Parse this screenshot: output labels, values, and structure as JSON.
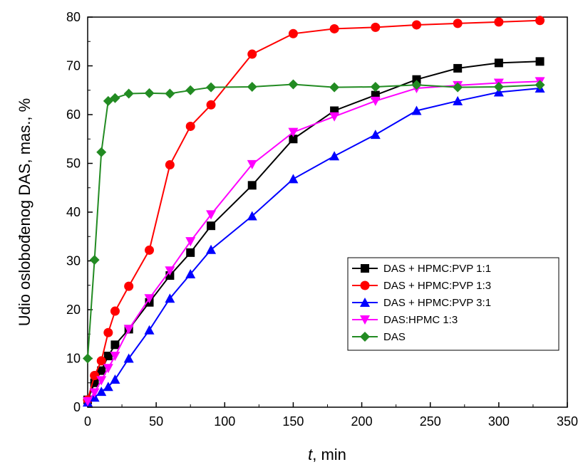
{
  "chart_data": {
    "type": "line",
    "xlabel_italic": "t",
    "xlabel_rest": ", min",
    "ylabel": "Udio oslobođenog DAS, mas., %",
    "xlim": [
      0,
      350
    ],
    "ylim": [
      0,
      80
    ],
    "xticks": [
      0,
      50,
      100,
      150,
      200,
      250,
      300,
      350
    ],
    "yticks": [
      0,
      10,
      20,
      30,
      40,
      50,
      60,
      70,
      80
    ],
    "legend_position": "lower-right",
    "grid": false,
    "series": [
      {
        "name": "DAS + HPMC:PVP 1:1",
        "color": "#000000",
        "marker": "square",
        "x": [
          0,
          5,
          10,
          15,
          20,
          30,
          45,
          60,
          75,
          90,
          120,
          150,
          180,
          210,
          240,
          270,
          300,
          330
        ],
        "y": [
          1.5,
          5.0,
          7.5,
          10.5,
          12.8,
          16.0,
          21.5,
          27.0,
          31.7,
          37.2,
          45.5,
          55.0,
          60.8,
          64.0,
          67.2,
          69.5,
          70.6,
          70.9
        ]
      },
      {
        "name": "DAS + HPMC:PVP 1:3",
        "color": "#ff0000",
        "marker": "circle",
        "x": [
          0,
          5,
          10,
          15,
          20,
          30,
          45,
          60,
          75,
          90,
          120,
          150,
          180,
          210,
          240,
          270,
          300,
          330
        ],
        "y": [
          1.5,
          6.5,
          9.5,
          15.3,
          19.7,
          24.8,
          32.2,
          49.7,
          57.6,
          62.0,
          72.4,
          76.6,
          77.6,
          77.9,
          78.4,
          78.7,
          79.0,
          79.3
        ]
      },
      {
        "name": "DAS + HPMC:PVP 3:1",
        "color": "#0000ff",
        "marker": "triangle-up",
        "x": [
          0,
          5,
          10,
          15,
          20,
          30,
          45,
          60,
          75,
          90,
          120,
          150,
          180,
          210,
          240,
          270,
          300,
          330
        ],
        "y": [
          1.0,
          2.0,
          3.2,
          4.2,
          5.7,
          10.0,
          15.8,
          22.3,
          27.3,
          32.3,
          39.2,
          46.8,
          51.5,
          55.9,
          60.8,
          62.8,
          64.6,
          65.4
        ]
      },
      {
        "name": "DAS:HPMC 1:3",
        "color": "#ff00ff",
        "marker": "triangle-down",
        "x": [
          0,
          5,
          10,
          15,
          20,
          30,
          45,
          60,
          75,
          90,
          120,
          150,
          180,
          210,
          240,
          270,
          300,
          330
        ],
        "y": [
          1.2,
          3.0,
          5.5,
          8.0,
          10.5,
          16.0,
          22.3,
          28.0,
          34.0,
          39.5,
          49.8,
          56.4,
          59.6,
          62.8,
          65.4,
          66.0,
          66.5,
          66.8
        ]
      },
      {
        "name": "DAS",
        "color": "#228b22",
        "marker": "diamond",
        "x": [
          0,
          5,
          10,
          15,
          20,
          30,
          45,
          60,
          75,
          90,
          120,
          150,
          180,
          210,
          240,
          270,
          300,
          330
        ],
        "y": [
          10.0,
          30.2,
          52.3,
          62.8,
          63.4,
          64.3,
          64.4,
          64.3,
          65.0,
          65.6,
          65.7,
          66.2,
          65.6,
          65.7,
          66.1,
          65.6,
          65.7,
          66.1
        ]
      }
    ]
  }
}
